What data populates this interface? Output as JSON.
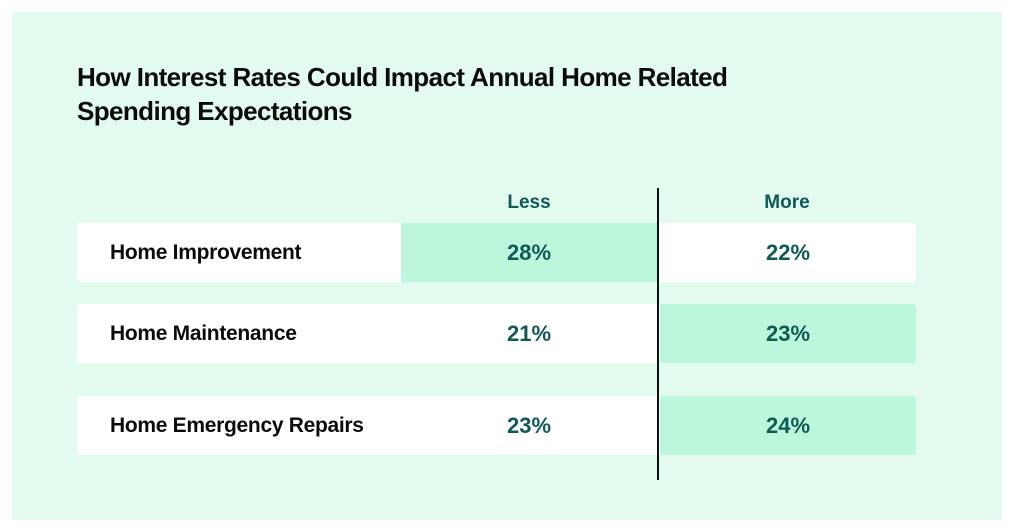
{
  "chart_data": {
    "type": "table",
    "title": "How Interest Rates Could Impact Annual Home Related Spending Expectations",
    "columns": [
      "Less",
      "More"
    ],
    "rows": [
      {
        "label": "Home Improvement",
        "less": "28%",
        "more": "22%",
        "higher": "less"
      },
      {
        "label": "Home Maintenance",
        "less": "21%",
        "more": "23%",
        "higher": "more"
      },
      {
        "label": "Home Emergency Repairs",
        "less": "23%",
        "more": "24%",
        "higher": "more"
      }
    ],
    "values": {
      "less": [
        28,
        21,
        23
      ],
      "more": [
        22,
        23,
        24
      ]
    }
  },
  "colors": {
    "background": "#e3faee",
    "row": "#ffffff",
    "highlight": "#bcf7dc",
    "value_text": "#0f5a55",
    "divider": "#111111"
  }
}
